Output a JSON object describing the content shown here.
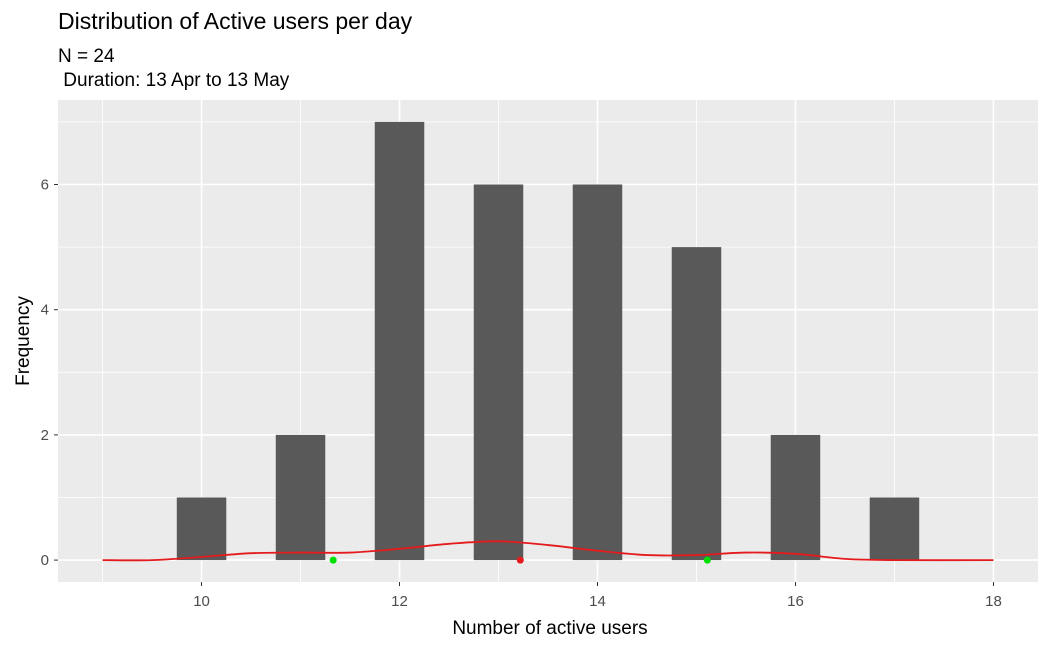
{
  "chart_data": {
    "type": "bar",
    "title": "Distribution of Active users per day",
    "subtitle_lines": [
      "N = 24",
      " Duration: 13 Apr to 13 May"
    ],
    "xlabel": "Number of active users",
    "ylabel": "Frequency",
    "x_ticks": [
      "10",
      "12",
      "14",
      "16",
      "18"
    ],
    "y_ticks": [
      "0",
      "2",
      "4",
      "6"
    ],
    "xlim": [
      9,
      18
    ],
    "ylim": [
      0,
      7
    ],
    "grid": true,
    "bar_color": "#595959",
    "panel_color": "#EBEBEB",
    "bars": [
      {
        "x": 10,
        "value": 1
      },
      {
        "x": 11,
        "value": 2
      },
      {
        "x": 12,
        "value": 7
      },
      {
        "x": 13,
        "value": 6
      },
      {
        "x": 14,
        "value": 6
      },
      {
        "x": 15,
        "value": 5
      },
      {
        "x": 16,
        "value": 2
      },
      {
        "x": 17,
        "value": 1
      }
    ],
    "density_line": {
      "color": "#E41A1C",
      "points": [
        [
          9,
          0
        ],
        [
          9.5,
          0
        ],
        [
          10,
          0.05
        ],
        [
          10.5,
          0.11
        ],
        [
          11,
          0.12
        ],
        [
          11.5,
          0.12
        ],
        [
          12,
          0.18
        ],
        [
          12.5,
          0.26
        ],
        [
          13,
          0.3
        ],
        [
          13.5,
          0.24
        ],
        [
          14,
          0.15
        ],
        [
          14.5,
          0.08
        ],
        [
          15,
          0.08
        ],
        [
          15.5,
          0.12
        ],
        [
          16,
          0.1
        ],
        [
          16.5,
          0.02
        ],
        [
          17,
          0
        ],
        [
          18,
          0
        ]
      ]
    },
    "markers": [
      {
        "x": 11.33,
        "y": 0,
        "color": "#00E000"
      },
      {
        "x": 13.22,
        "y": 0,
        "color": "#E41A1C"
      },
      {
        "x": 15.11,
        "y": 0,
        "color": "#00E000"
      }
    ]
  }
}
